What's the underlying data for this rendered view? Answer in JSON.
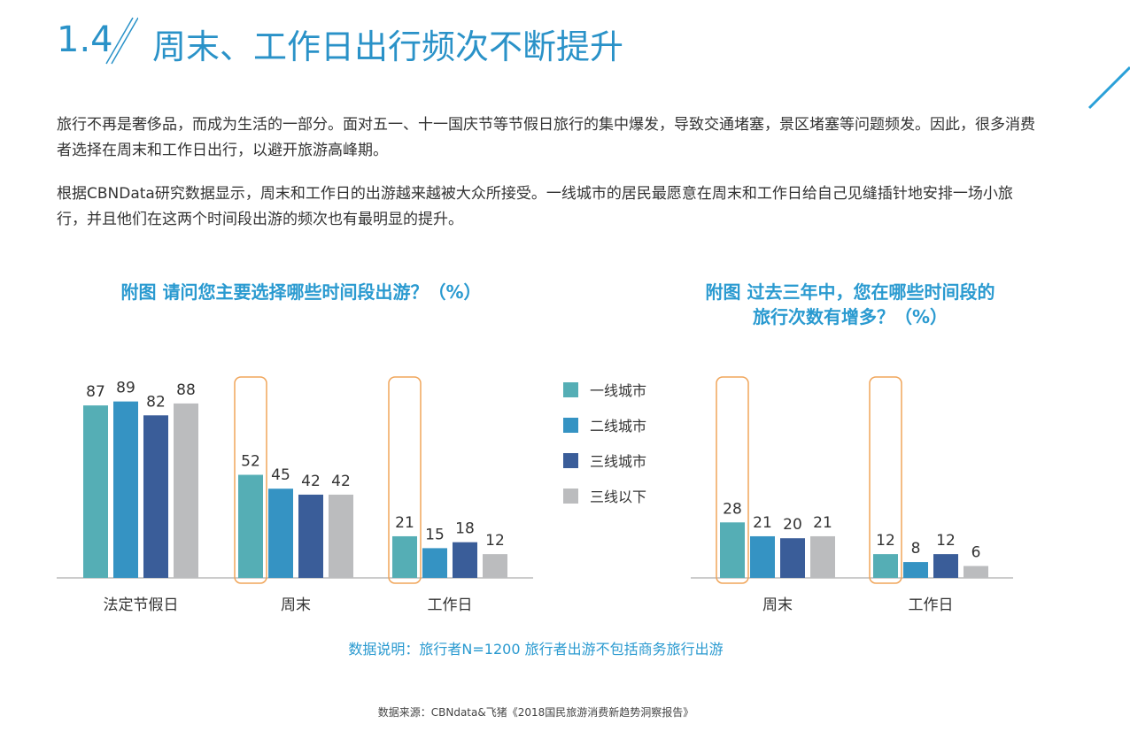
{
  "header": {
    "section_number": "1.4",
    "title": "周末、工作日出行频次不断提升"
  },
  "paragraphs": [
    "旅行不再是奢侈品，而成为生活的一部分。面对五一、十一国庆节等节假日旅行的集中爆发，导致交通堵塞，景区堵塞等问题频发。因此，很多消费者选择在周末和工作日出行，以避开旅游高峰期。",
    "根据CBNData研究数据显示，周末和工作日的出游越来越被大众所接受。一线城市的居民最愿意在周末和工作日给自己见缝插针地安排一场小旅行，并且他们在这两个时间段出游的频次也有最明显的提升。"
  ],
  "colors": {
    "accent": "#2a92c8",
    "highlight_box": "#f0a55a",
    "axis": "#999999"
  },
  "legend": [
    {
      "label": "一线城市",
      "color": "#55aeb5"
    },
    {
      "label": "二线城市",
      "color": "#3593c3"
    },
    {
      "label": "三线城市",
      "color": "#3a5d99"
    },
    {
      "label": "三线以下",
      "color": "#bbbcbe"
    }
  ],
  "chart_data": [
    {
      "type": "bar",
      "title": "附图  请问您主要选择哪些时间段出游？（%）",
      "categories": [
        "法定节假日",
        "周末",
        "工作日"
      ],
      "series": [
        {
          "name": "一线城市",
          "values": [
            87,
            52,
            21
          ]
        },
        {
          "name": "二线城市",
          "values": [
            89,
            45,
            15
          ]
        },
        {
          "name": "三线城市",
          "values": [
            82,
            42,
            18
          ]
        },
        {
          "name": "三线以下",
          "values": [
            88,
            42,
            12
          ]
        }
      ],
      "highlighted": [
        {
          "category": "周末",
          "series": "一线城市"
        },
        {
          "category": "工作日",
          "series": "一线城市"
        }
      ],
      "ylim": [
        0,
        100
      ],
      "grid": false,
      "legend_position": "right"
    },
    {
      "type": "bar",
      "title": "附图  过去三年中，您在哪些时间段的\n旅行次数有增多？（%）",
      "categories": [
        "周末",
        "工作日"
      ],
      "series": [
        {
          "name": "一线城市",
          "values": [
            28,
            12
          ]
        },
        {
          "name": "二线城市",
          "values": [
            21,
            8
          ]
        },
        {
          "name": "三线城市",
          "values": [
            20,
            12
          ]
        },
        {
          "name": "三线以下",
          "values": [
            21,
            6
          ]
        }
      ],
      "highlighted": [
        {
          "category": "周末",
          "series": "一线城市"
        },
        {
          "category": "工作日",
          "series": "一线城市"
        }
      ],
      "ylim": [
        0,
        100
      ],
      "grid": false
    }
  ],
  "note": "数据说明：旅行者N=1200 旅行者出游不包括商务旅行出游",
  "source": "数据来源：CBNdata&飞猪《2018国民旅游消费新趋势洞察报告》"
}
